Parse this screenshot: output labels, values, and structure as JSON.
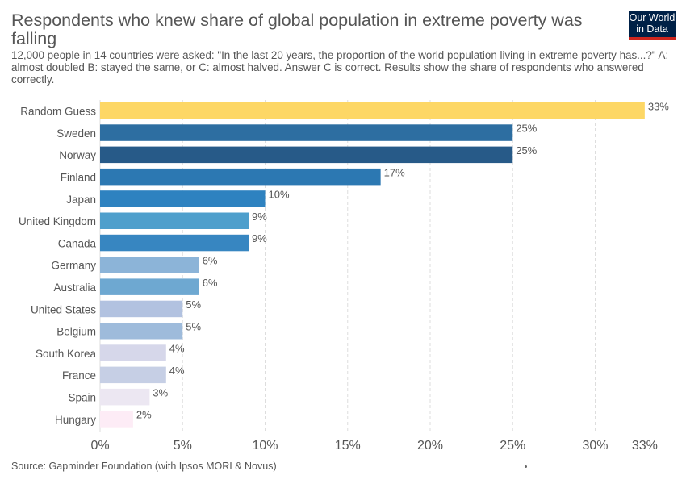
{
  "header": {
    "title": "Respondents who knew share of global population in extreme poverty was falling",
    "subtitle": "12,000 people in 14 countries were asked: \"In the last 20 years, the proportion of the world population living in extreme poverty has...?\" A: almost doubled B: stayed the same, or C: almost halved. Answer C is correct. Results show the share of respondents who answered correctly."
  },
  "logo": {
    "line1": "Our World",
    "line2": "in Data"
  },
  "footer": {
    "source": "Source: Gapminder Foundation (with Ipsos MORI & Novus)"
  },
  "chart_data": {
    "type": "bar",
    "orientation": "horizontal",
    "title": "Respondents who knew share of global population in extreme poverty was falling",
    "xlim": [
      0,
      33
    ],
    "xticks": [
      "0%",
      "5%",
      "10%",
      "15%",
      "20%",
      "25%",
      "30%",
      "33%"
    ],
    "xtick_values": [
      0,
      5,
      10,
      15,
      20,
      25,
      30,
      33
    ],
    "grid": true,
    "categories": [
      "Random Guess",
      "Sweden",
      "Norway",
      "Finland",
      "Japan",
      "United Kingdom",
      "Canada",
      "Germany",
      "Australia",
      "United States",
      "Belgium",
      "South Korea",
      "France",
      "Spain",
      "Hungary"
    ],
    "values": [
      33,
      25,
      25,
      17,
      10,
      9,
      9,
      6,
      6,
      5,
      5,
      4,
      4,
      3,
      2
    ],
    "labels": [
      "33%",
      "25%",
      "25%",
      "17%",
      "10%",
      "9%",
      "9%",
      "6%",
      "6%",
      "5%",
      "5%",
      "4%",
      "4%",
      "3%",
      "2%"
    ],
    "colors": [
      "#fdd765",
      "#2d6ea1",
      "#275a88",
      "#2c78b2",
      "#2e82c0",
      "#4e9fcc",
      "#3786c1",
      "#8cb4d8",
      "#6ea8d1",
      "#b2c2e0",
      "#9ebbdb",
      "#d6d7ea",
      "#c6cfe5",
      "#ece7f2",
      "#fdecf6"
    ]
  }
}
